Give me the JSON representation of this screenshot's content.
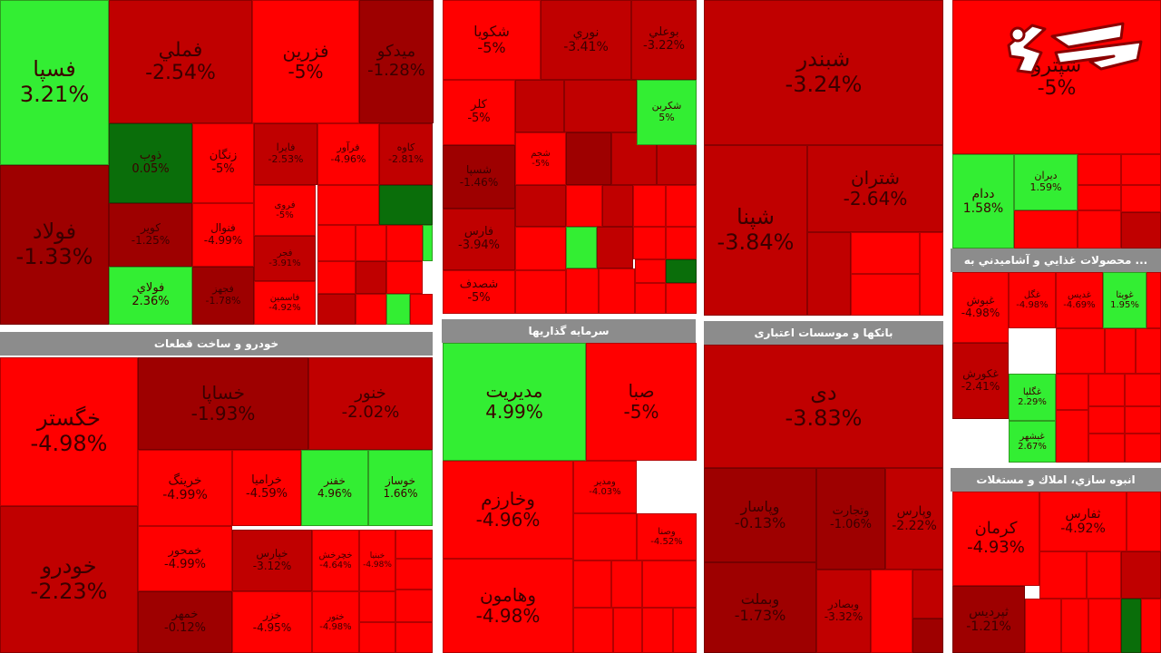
{
  "colors": {
    "deep_red": "#9e0000",
    "dark_red": "#c00000",
    "red": "#ff0000",
    "green": "#33ee33",
    "dark_green": "#0a6e0a"
  },
  "sector_headers": {
    "auto": "خودرو و ساخت قطعات",
    "investment": "سرمایه گذاریها",
    "banks": "بانکها و موسسات اعتباری",
    "food": "... محصولات غذایي و آشامیدني به",
    "construction": "انبوه سازي، املاك و مستغلات"
  },
  "logo": {
    "icon": "rokna-logo"
  },
  "chart_data": {
    "type": "treemap",
    "tiles": [
      {
        "name": "فسپا",
        "value": "3.21%"
      },
      {
        "name": "فولاد",
        "value": "-1.33%"
      },
      {
        "name": "فملي",
        "value": "-2.54%"
      },
      {
        "name": "فزرین",
        "value": "-5%"
      },
      {
        "name": "میدکو",
        "value": "-1.28%"
      },
      {
        "name": "ذوب",
        "value": "0.05%"
      },
      {
        "name": "زنگان",
        "value": "-5%"
      },
      {
        "name": "کویر",
        "value": "-1.25%"
      },
      {
        "name": "فنوال",
        "value": "-4.99%"
      },
      {
        "name": "فولاي",
        "value": "2.36%"
      },
      {
        "name": "فجهز",
        "value": "-1.78%"
      },
      {
        "name": "فايرا",
        "value": "-2.53%"
      },
      {
        "name": "فرآور",
        "value": "-4.96%"
      },
      {
        "name": "کاوه",
        "value": "-2.81%"
      },
      {
        "name": "فروی",
        "value": "-5%"
      },
      {
        "name": "فجر",
        "value": "-3.91%"
      },
      {
        "name": "فاسمين",
        "value": "-4.92%"
      },
      {
        "name": "خگستر",
        "value": "-4.98%"
      },
      {
        "name": "خودرو",
        "value": "-2.23%"
      },
      {
        "name": "خساپا",
        "value": "-1.93%"
      },
      {
        "name": "خنور",
        "value": "-2.02%"
      },
      {
        "name": "خرینگ",
        "value": "-4.99%"
      },
      {
        "name": "خراميا",
        "value": "-4.59%"
      },
      {
        "name": "خفنر",
        "value": "4.96%"
      },
      {
        "name": "خوساز",
        "value": "1.66%"
      },
      {
        "name": "خمحور",
        "value": "-4.99%"
      },
      {
        "name": "خمهر",
        "value": "-0.12%"
      },
      {
        "name": "خپارس",
        "value": "-3.12%"
      },
      {
        "name": "خچرخش",
        "value": "-4.64%"
      },
      {
        "name": "ختور",
        "value": "-4.98%"
      },
      {
        "name": "خزر",
        "value": "-4.95%"
      },
      {
        "name": "خبنیا",
        "value": "-4.98%"
      },
      {
        "name": "شکویا",
        "value": "-5%"
      },
      {
        "name": "نوري",
        "value": "-3.41%"
      },
      {
        "name": "بوعلي",
        "value": "-3.22%"
      },
      {
        "name": "کلر",
        "value": "-5%"
      },
      {
        "name": "شکربن",
        "value": "5%"
      },
      {
        "name": "شسپا",
        "value": "-1.46%"
      },
      {
        "name": "شجم",
        "value": "-5%"
      },
      {
        "name": "فارس",
        "value": "-3.94%"
      },
      {
        "name": "شصدف",
        "value": "-5%"
      },
      {
        "name": "مدیریت",
        "value": "4.99%"
      },
      {
        "name": "صبا",
        "value": "-5%"
      },
      {
        "name": "وخارزم",
        "value": "-4.96%"
      },
      {
        "name": "وهامون",
        "value": "-4.98%"
      },
      {
        "name": "ومدیر",
        "value": "-4.03%"
      },
      {
        "name": "وصنا",
        "value": "-4.52%"
      },
      {
        "name": "شبندر",
        "value": "-3.24%"
      },
      {
        "name": "شپنا",
        "value": "-3.84%"
      },
      {
        "name": "شتران",
        "value": "-2.64%"
      },
      {
        "name": "دی",
        "value": "-3.83%"
      },
      {
        "name": "وپاسار",
        "value": "-0.13%"
      },
      {
        "name": "وبملت",
        "value": "-1.73%"
      },
      {
        "name": "وتجارت",
        "value": "-1.06%"
      },
      {
        "name": "وپارس",
        "value": "-2.22%"
      },
      {
        "name": "وبصادر",
        "value": "-3.32%"
      },
      {
        "name": "شپترو",
        "value": "-5%"
      },
      {
        "name": "ددام",
        "value": "1.58%"
      },
      {
        "name": "دیران",
        "value": "1.59%"
      },
      {
        "name": "غبوش",
        "value": "-4.98%"
      },
      {
        "name": "غگل",
        "value": "-4.98%"
      },
      {
        "name": "غدیس",
        "value": "-4.69%"
      },
      {
        "name": "غویتا",
        "value": "1.95%"
      },
      {
        "name": "غکورش",
        "value": "-2.41%"
      },
      {
        "name": "غگلپا",
        "value": "2.29%"
      },
      {
        "name": "غبشهر",
        "value": "2.67%"
      },
      {
        "name": "کرمان",
        "value": "-4.93%"
      },
      {
        "name": "ثفارس",
        "value": "-4.92%"
      },
      {
        "name": "ثپردیس",
        "value": "-1.21%"
      }
    ]
  }
}
